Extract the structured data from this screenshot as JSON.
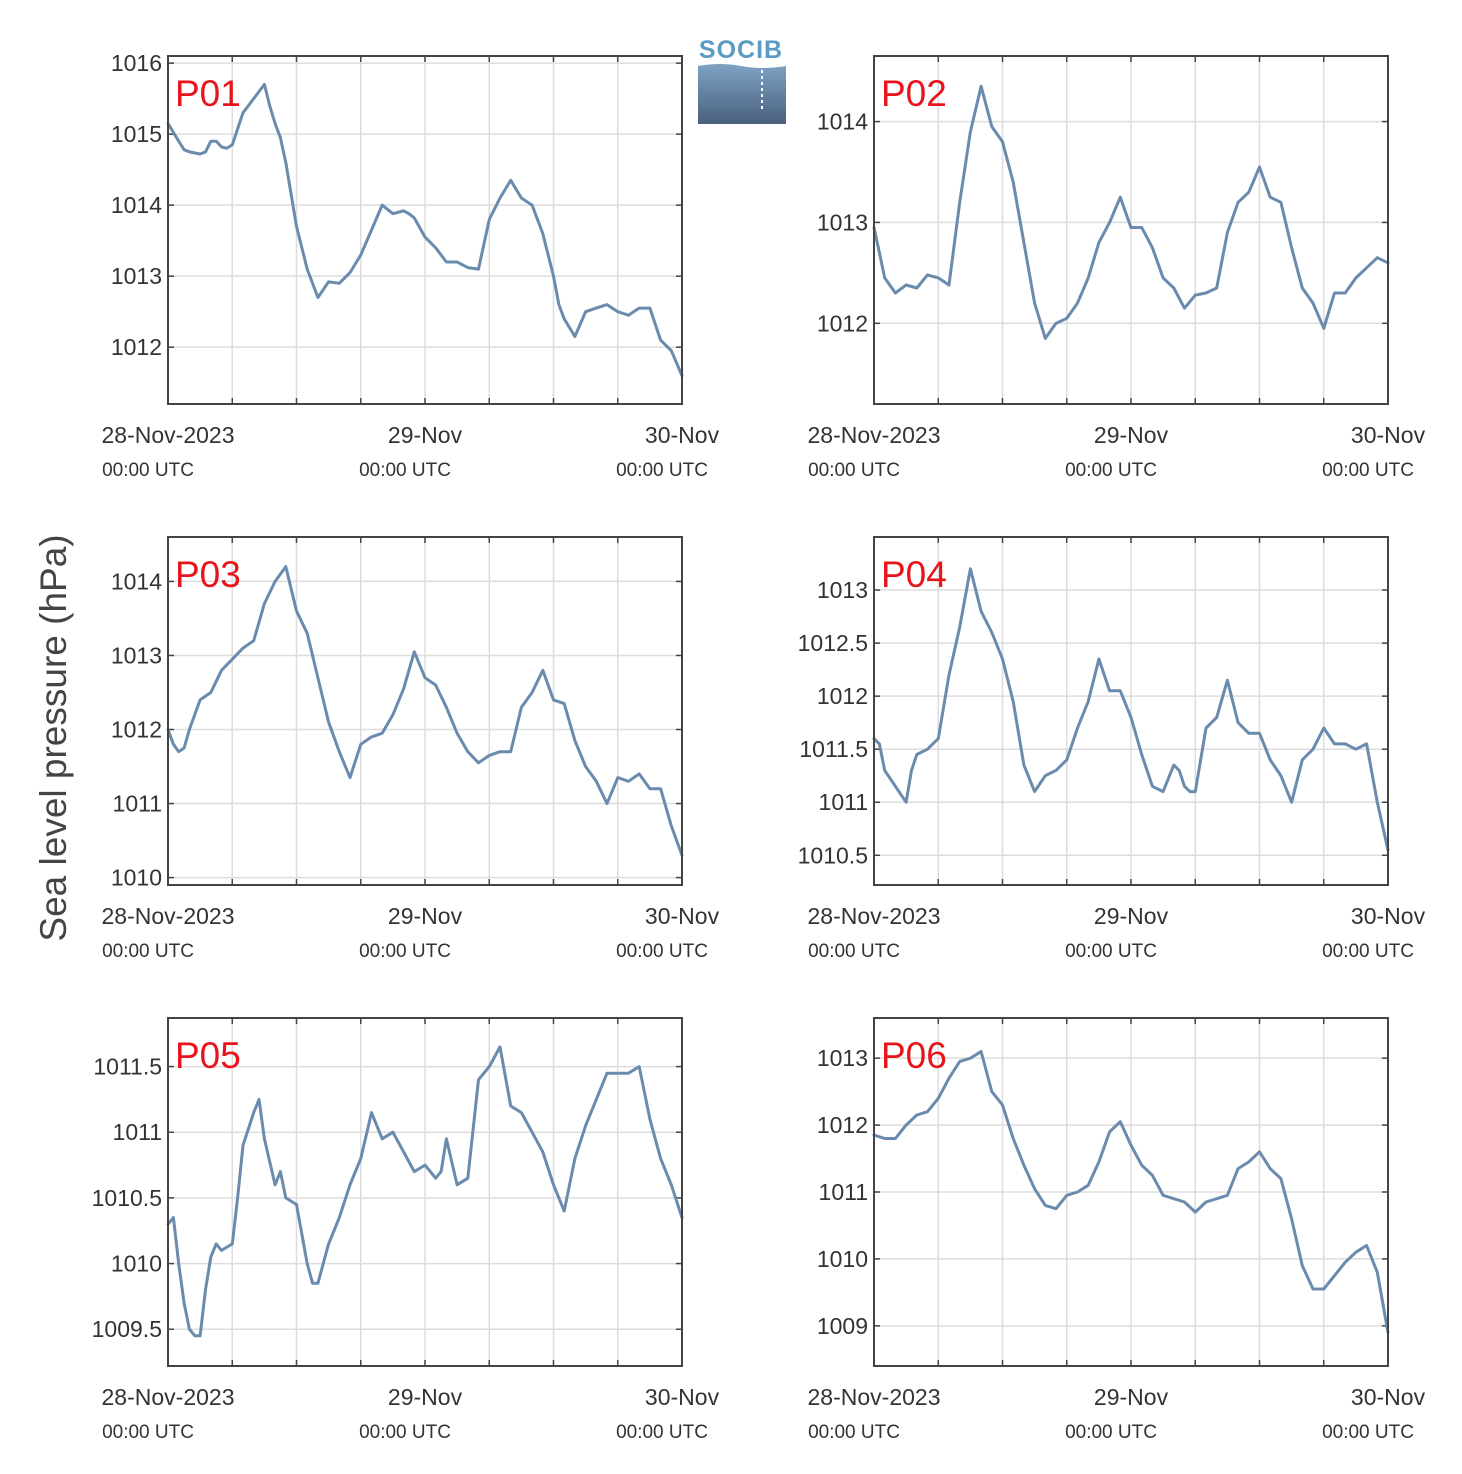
{
  "figure": {
    "ylabel": "Sea level pressure (hPa)",
    "logo_text": "SOCIB",
    "colors": {
      "line": "#6a8bad",
      "panel_label": "#e8141c",
      "grid": "#dddddd",
      "frame": "#444444"
    }
  },
  "chart_data": [
    {
      "type": "line",
      "label": "P01",
      "xlim": [
        0,
        48
      ],
      "ylim": [
        1011.2,
        1016.1
      ],
      "xticks": [
        0,
        24,
        48
      ],
      "yticks": [
        1012,
        1013,
        1014,
        1015,
        1016
      ],
      "xtick_labels": [
        "28-Nov-2023",
        "29-Nov",
        "30-Nov"
      ],
      "xtick_sublabels": [
        "00:00 UTC",
        "00:00 UTC",
        "00:00 UTC"
      ],
      "x": [
        0,
        1,
        1.5,
        2,
        3,
        3.5,
        4,
        4.5,
        5,
        5.5,
        6,
        7,
        8,
        9,
        9.5,
        10,
        10.5,
        11,
        12,
        13,
        14,
        15,
        16,
        17,
        18,
        19,
        20,
        21,
        22,
        22.5,
        23,
        24,
        25,
        26,
        27,
        28,
        29,
        30,
        31,
        32,
        33,
        34,
        35,
        36,
        36.5,
        37,
        38,
        39,
        40,
        41,
        42,
        43,
        44,
        45,
        46,
        47,
        48
      ],
      "y": [
        1015.15,
        1014.9,
        1014.78,
        1014.75,
        1014.72,
        1014.75,
        1014.9,
        1014.9,
        1014.82,
        1014.8,
        1014.85,
        1015.3,
        1015.5,
        1015.7,
        1015.4,
        1015.15,
        1014.95,
        1014.6,
        1013.7,
        1013.1,
        1012.7,
        1012.92,
        1012.9,
        1013.05,
        1013.3,
        1013.65,
        1014.0,
        1013.88,
        1013.92,
        1013.88,
        1013.82,
        1013.55,
        1013.4,
        1013.2,
        1013.2,
        1013.12,
        1013.1,
        1013.8,
        1014.1,
        1014.35,
        1014.1,
        1014.0,
        1013.6,
        1013.0,
        1012.6,
        1012.4,
        1012.15,
        1012.5,
        1012.55,
        1012.6,
        1012.5,
        1012.45,
        1012.55,
        1012.55,
        1012.1,
        1011.95,
        1011.6
      ]
    },
    {
      "type": "line",
      "label": "P02",
      "xlim": [
        0,
        48
      ],
      "ylim": [
        1011.2,
        1014.65
      ],
      "xticks": [
        0,
        24,
        48
      ],
      "yticks": [
        1012,
        1013,
        1014
      ],
      "xtick_labels": [
        "28-Nov-2023",
        "29-Nov",
        "30-Nov"
      ],
      "xtick_sublabels": [
        "00:00 UTC",
        "00:00 UTC",
        "00:00 UTC"
      ],
      "x": [
        0,
        0.5,
        1,
        2,
        3,
        4,
        5,
        6,
        7,
        8,
        9,
        10,
        11,
        12,
        13,
        14,
        15,
        16,
        17,
        18,
        19,
        20,
        21,
        22,
        23,
        24,
        25,
        26,
        27,
        28,
        29,
        30,
        31,
        32,
        33,
        34,
        35,
        36,
        37,
        38,
        39,
        40,
        41,
        42,
        43,
        44,
        45,
        46,
        47,
        48
      ],
      "y": [
        1012.95,
        1012.7,
        1012.45,
        1012.3,
        1012.38,
        1012.35,
        1012.48,
        1012.45,
        1012.38,
        1013.2,
        1013.9,
        1014.35,
        1013.95,
        1013.8,
        1013.4,
        1012.8,
        1012.2,
        1011.85,
        1012.0,
        1012.05,
        1012.2,
        1012.45,
        1012.8,
        1013.0,
        1013.25,
        1012.95,
        1012.95,
        1012.75,
        1012.45,
        1012.35,
        1012.15,
        1012.28,
        1012.3,
        1012.35,
        1012.9,
        1013.2,
        1013.3,
        1013.55,
        1013.25,
        1013.2,
        1012.75,
        1012.35,
        1012.2,
        1011.95,
        1012.3,
        1012.3,
        1012.45,
        1012.55,
        1012.65,
        1012.6
      ]
    },
    {
      "type": "line",
      "label": "P03",
      "xlim": [
        0,
        48
      ],
      "ylim": [
        1009.9,
        1014.6
      ],
      "xticks": [
        0,
        24,
        48
      ],
      "yticks": [
        1010,
        1011,
        1012,
        1013,
        1014
      ],
      "xtick_labels": [
        "28-Nov-2023",
        "29-Nov",
        "30-Nov"
      ],
      "xtick_sublabels": [
        "00:00 UTC",
        "00:00 UTC",
        "00:00 UTC"
      ],
      "x": [
        0,
        0.5,
        1,
        1.5,
        2,
        3,
        4,
        5,
        6,
        7,
        8,
        9,
        10,
        11,
        12,
        13,
        14,
        15,
        16,
        17,
        18,
        19,
        20,
        21,
        22,
        23,
        24,
        25,
        26,
        27,
        28,
        29,
        30,
        31,
        32,
        33,
        34,
        35,
        36,
        37,
        38,
        39,
        40,
        41,
        42,
        43,
        44,
        45,
        46,
        47,
        48
      ],
      "y": [
        1012.0,
        1011.8,
        1011.7,
        1011.75,
        1012.0,
        1012.4,
        1012.5,
        1012.8,
        1012.95,
        1013.1,
        1013.2,
        1013.7,
        1014.0,
        1014.2,
        1013.6,
        1013.3,
        1012.7,
        1012.1,
        1011.7,
        1011.35,
        1011.8,
        1011.9,
        1011.95,
        1012.2,
        1012.55,
        1013.05,
        1012.7,
        1012.6,
        1012.3,
        1011.95,
        1011.7,
        1011.55,
        1011.65,
        1011.7,
        1011.7,
        1012.3,
        1012.5,
        1012.8,
        1012.4,
        1012.35,
        1011.85,
        1011.5,
        1011.3,
        1011.0,
        1011.35,
        1011.3,
        1011.4,
        1011.2,
        1011.2,
        1010.7,
        1010.3
      ]
    },
    {
      "type": "line",
      "label": "P04",
      "xlim": [
        0,
        48
      ],
      "ylim": [
        1010.22,
        1013.5
      ],
      "xticks": [
        0,
        24,
        48
      ],
      "yticks": [
        1010.5,
        1011,
        1011.5,
        1012,
        1012.5,
        1013
      ],
      "xtick_labels": [
        "28-Nov-2023",
        "29-Nov",
        "30-Nov"
      ],
      "xtick_sublabels": [
        "00:00 UTC",
        "00:00 UTC",
        "00:00 UTC"
      ],
      "x": [
        0,
        0.5,
        1,
        2,
        3,
        3.5,
        4,
        5,
        6,
        7,
        8,
        9,
        10,
        11,
        12,
        13,
        14,
        15,
        16,
        17,
        18,
        19,
        20,
        21,
        22,
        23,
        24,
        25,
        26,
        27,
        28,
        28.5,
        29,
        29.5,
        30,
        31,
        32,
        33,
        34,
        35,
        36,
        37,
        38,
        39,
        40,
        41,
        42,
        43,
        44,
        45,
        46,
        47,
        48
      ],
      "y": [
        1011.6,
        1011.55,
        1011.3,
        1011.15,
        1011.0,
        1011.3,
        1011.45,
        1011.5,
        1011.6,
        1012.2,
        1012.65,
        1013.2,
        1012.8,
        1012.6,
        1012.35,
        1011.95,
        1011.35,
        1011.1,
        1011.25,
        1011.3,
        1011.4,
        1011.7,
        1011.95,
        1012.35,
        1012.05,
        1012.05,
        1011.8,
        1011.45,
        1011.15,
        1011.1,
        1011.35,
        1011.3,
        1011.15,
        1011.1,
        1011.1,
        1011.7,
        1011.8,
        1012.15,
        1011.75,
        1011.65,
        1011.65,
        1011.4,
        1011.25,
        1011.0,
        1011.4,
        1011.5,
        1011.7,
        1011.55,
        1011.55,
        1011.5,
        1011.55,
        1011.0,
        1010.55
      ]
    },
    {
      "type": "line",
      "label": "P05",
      "xlim": [
        0,
        48
      ],
      "ylim": [
        1009.22,
        1011.87
      ],
      "xticks": [
        0,
        24,
        48
      ],
      "yticks": [
        1009.5,
        1010,
        1010.5,
        1011,
        1011.5
      ],
      "xtick_labels": [
        "28-Nov-2023",
        "29-Nov",
        "30-Nov"
      ],
      "xtick_sublabels": [
        "00:00 UTC",
        "00:00 UTC",
        "00:00 UTC"
      ],
      "x": [
        0,
        0.5,
        1,
        1.5,
        2,
        2.5,
        3,
        3.5,
        4,
        4.5,
        5,
        6,
        6.5,
        7,
        8,
        8.5,
        9,
        10,
        10.5,
        11,
        12,
        13,
        13.5,
        14,
        15,
        15.5,
        16,
        17,
        18,
        19,
        20,
        21,
        22,
        23,
        24,
        25,
        25.5,
        26,
        27,
        28,
        29,
        30,
        31,
        32,
        33,
        34,
        35,
        36,
        37,
        38,
        39,
        40,
        41,
        42,
        43,
        44,
        45,
        46,
        47,
        48
      ],
      "y": [
        1010.3,
        1010.35,
        1010.0,
        1009.7,
        1009.5,
        1009.45,
        1009.45,
        1009.8,
        1010.05,
        1010.15,
        1010.1,
        1010.15,
        1010.5,
        1010.9,
        1011.15,
        1011.25,
        1010.95,
        1010.6,
        1010.7,
        1010.5,
        1010.45,
        1010.0,
        1009.85,
        1009.85,
        1010.15,
        1010.25,
        1010.35,
        1010.6,
        1010.8,
        1011.15,
        1010.95,
        1011.0,
        1010.85,
        1010.7,
        1010.75,
        1010.65,
        1010.7,
        1010.95,
        1010.6,
        1010.65,
        1011.4,
        1011.5,
        1011.65,
        1011.2,
        1011.15,
        1011.0,
        1010.85,
        1010.6,
        1010.4,
        1010.8,
        1011.05,
        1011.25,
        1011.45,
        1011.45,
        1011.45,
        1011.5,
        1011.1,
        1010.8,
        1010.6,
        1010.35
      ]
    },
    {
      "type": "line",
      "label": "P06",
      "xlim": [
        0,
        48
      ],
      "ylim": [
        1008.4,
        1013.6
      ],
      "xticks": [
        0,
        24,
        48
      ],
      "yticks": [
        1009,
        1010,
        1011,
        1012,
        1013
      ],
      "xtick_labels": [
        "28-Nov-2023",
        "29-Nov",
        "30-Nov"
      ],
      "xtick_sublabels": [
        "00:00 UTC",
        "00:00 UTC",
        "00:00 UTC"
      ],
      "x": [
        0,
        1,
        2,
        3,
        4,
        5,
        6,
        7,
        8,
        9,
        10,
        11,
        12,
        13,
        14,
        15,
        16,
        17,
        18,
        19,
        20,
        21,
        22,
        23,
        24,
        25,
        26,
        27,
        28,
        29,
        30,
        31,
        32,
        33,
        34,
        35,
        36,
        37,
        38,
        39,
        40,
        41,
        42,
        43,
        44,
        45,
        46,
        47,
        48
      ],
      "y": [
        1011.85,
        1011.8,
        1011.8,
        1012.0,
        1012.15,
        1012.2,
        1012.4,
        1012.7,
        1012.95,
        1013.0,
        1013.1,
        1012.5,
        1012.3,
        1011.8,
        1011.4,
        1011.05,
        1010.8,
        1010.75,
        1010.95,
        1011.0,
        1011.1,
        1011.45,
        1011.9,
        1012.05,
        1011.7,
        1011.4,
        1011.25,
        1010.95,
        1010.9,
        1010.85,
        1010.7,
        1010.85,
        1010.9,
        1010.95,
        1011.35,
        1011.45,
        1011.6,
        1011.35,
        1011.2,
        1010.6,
        1009.9,
        1009.55,
        1009.55,
        1009.75,
        1009.95,
        1010.1,
        1010.2,
        1009.8,
        1008.9
      ]
    }
  ]
}
